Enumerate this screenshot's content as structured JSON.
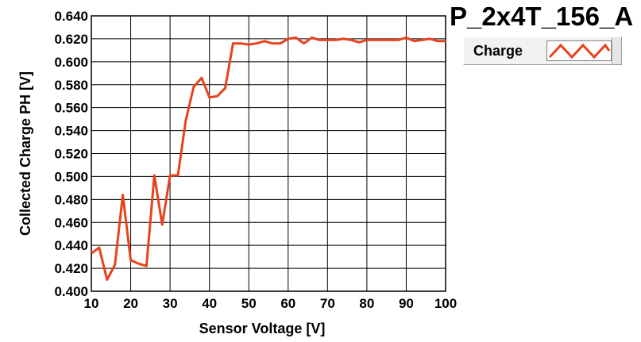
{
  "colors": {
    "series": "#e8431c",
    "grid": "#000000",
    "plot_bg": "#ffffff"
  },
  "chart_data": {
    "type": "line",
    "title": "P_2x4T_156_A",
    "xlabel": "Sensor Voltage [V]",
    "ylabel": "Collected Charge PH [V]",
    "xlim": [
      10,
      100
    ],
    "ylim": [
      0.4,
      0.64
    ],
    "x_ticks": [
      "10",
      "20",
      "30",
      "40",
      "50",
      "60",
      "70",
      "80",
      "90",
      "100"
    ],
    "x_tick_values": [
      10,
      20,
      30,
      40,
      50,
      60,
      70,
      80,
      90,
      100
    ],
    "y_ticks": [
      "0.400",
      "0.420",
      "0.440",
      "0.460",
      "0.480",
      "0.500",
      "0.520",
      "0.540",
      "0.560",
      "0.580",
      "0.600",
      "0.620",
      "0.640"
    ],
    "y_tick_values": [
      0.4,
      0.42,
      0.44,
      0.46,
      0.48,
      0.5,
      0.52,
      0.54,
      0.56,
      0.58,
      0.6,
      0.62,
      0.64
    ],
    "grid": true,
    "legend_position": "top-right",
    "series": [
      {
        "name": "Charge",
        "x": [
          10,
          12,
          14,
          16,
          18,
          20,
          22,
          24,
          26,
          28,
          30,
          32,
          34,
          36,
          38,
          40,
          42,
          44,
          46,
          48,
          50,
          52,
          54,
          56,
          58,
          60,
          62,
          64,
          66,
          68,
          70,
          72,
          74,
          76,
          78,
          80,
          82,
          84,
          86,
          88,
          90,
          92,
          94,
          96,
          98,
          100
        ],
        "y": [
          0.433,
          0.438,
          0.41,
          0.423,
          0.484,
          0.427,
          0.424,
          0.422,
          0.501,
          0.458,
          0.501,
          0.501,
          0.549,
          0.578,
          0.586,
          0.569,
          0.57,
          0.577,
          0.616,
          0.616,
          0.615,
          0.616,
          0.618,
          0.616,
          0.616,
          0.62,
          0.621,
          0.616,
          0.621,
          0.619,
          0.619,
          0.619,
          0.62,
          0.619,
          0.617,
          0.619,
          0.619,
          0.619,
          0.619,
          0.619,
          0.621,
          0.618,
          0.619,
          0.62,
          0.618,
          0.618
        ]
      }
    ]
  }
}
